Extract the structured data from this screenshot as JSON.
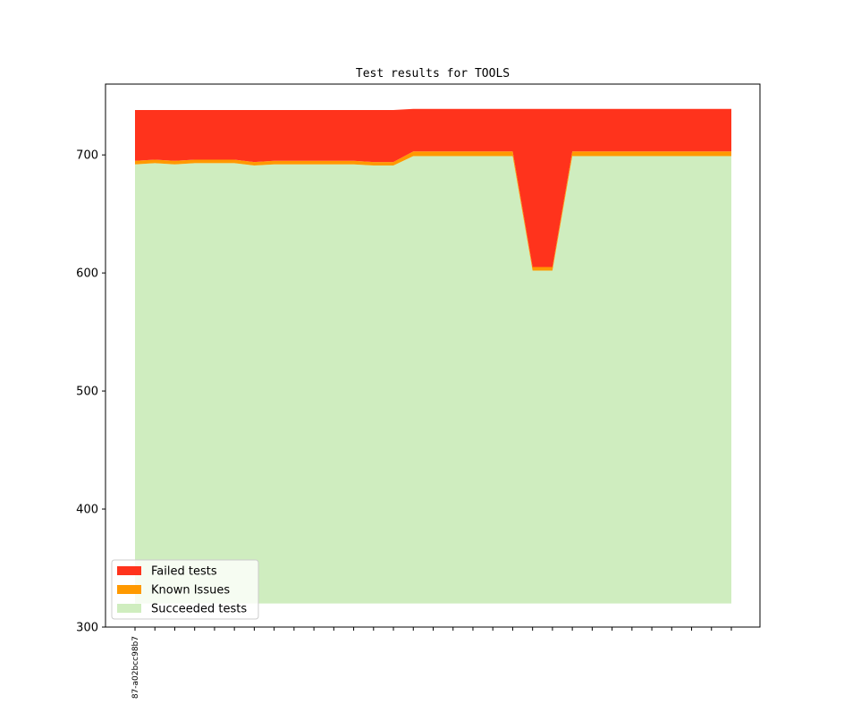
{
  "chart_data": {
    "type": "area",
    "stacked": true,
    "title": "Test results for TOOLS",
    "xlabel": "",
    "ylabel": "",
    "ylim": [
      300,
      760
    ],
    "yticks": [
      300,
      400,
      500,
      600,
      700
    ],
    "x_count": 31,
    "x_tick_labels": [
      {
        "index": 0,
        "label": "87-a02bcc98b7"
      }
    ],
    "series": [
      {
        "name": "Succeeded tests",
        "color": "#cfedbf",
        "values": [
          320,
          320,
          320,
          320,
          320,
          320,
          320,
          320,
          320,
          320,
          320,
          320,
          320,
          320,
          320,
          320,
          320,
          320,
          320,
          320,
          320,
          320,
          320,
          320,
          320,
          320,
          320,
          320,
          320,
          320,
          320
        ],
        "top": [
          692,
          693,
          692,
          693,
          693,
          693,
          691,
          692,
          692,
          692,
          692,
          692,
          691,
          691,
          699,
          699,
          699,
          699,
          699,
          699,
          602,
          602,
          699,
          699,
          699,
          699,
          699,
          699,
          699,
          699,
          699
        ]
      },
      {
        "name": "Known Issues",
        "color": "#ff9900",
        "thickness": [
          3,
          3,
          3,
          3,
          3,
          3,
          3,
          3,
          3,
          3,
          3,
          3,
          3,
          3,
          4,
          4,
          4,
          4,
          4,
          4,
          3,
          3,
          4,
          4,
          4,
          4,
          4,
          4,
          4,
          4,
          4
        ]
      },
      {
        "name": "Failed tests",
        "color": "#ff331c",
        "thickness": [
          43,
          42,
          43,
          42,
          42,
          42,
          44,
          43,
          43,
          43,
          43,
          43,
          44,
          44,
          36,
          36,
          36,
          36,
          36,
          36,
          134,
          134,
          36,
          36,
          36,
          36,
          36,
          36,
          36,
          36,
          36
        ]
      }
    ],
    "legend": {
      "position": "lower-left",
      "entries": [
        "Failed tests",
        "Known Issues",
        "Succeeded tests"
      ]
    },
    "grid": false
  }
}
